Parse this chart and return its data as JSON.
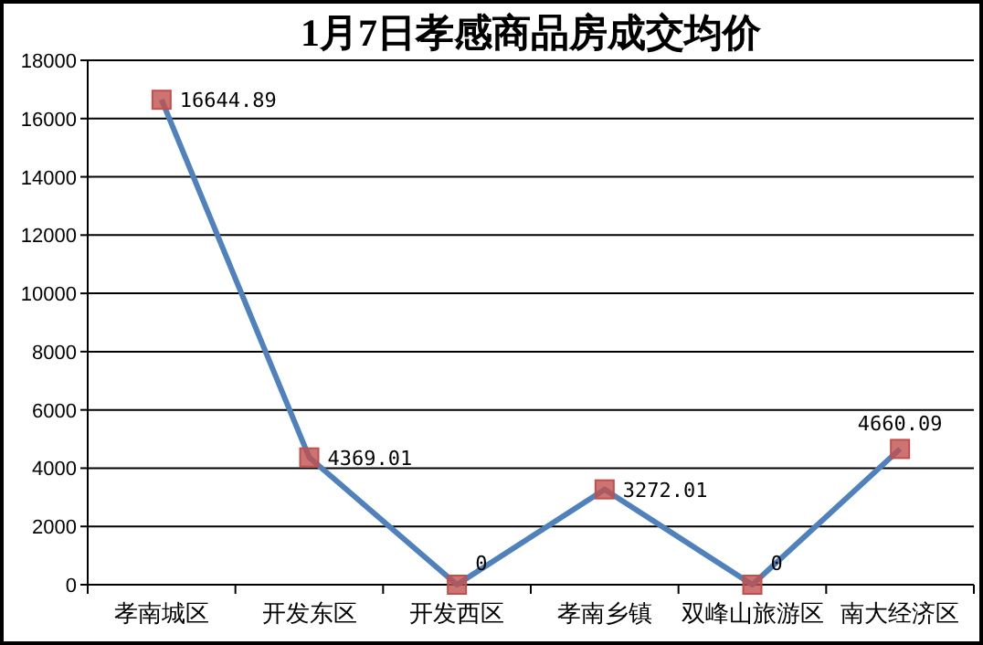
{
  "chart_data": {
    "type": "line",
    "title": "1月7日孝感商品房成交均价",
    "categories": [
      "孝南城区",
      "开发东区",
      "开发西区",
      "孝南乡镇",
      "双峰山旅游区",
      "南大经济区"
    ],
    "series": [
      {
        "color": "#4f81bd",
        "colors": [
          "#c0504d",
          "#c0504d",
          "#c0504d",
          "#c0504d",
          "#c0504d",
          "#c0504d"
        ],
        "values": [
          16644.89,
          4369.01,
          0,
          3272.01,
          0,
          4660.09
        ],
        "value_labels": [
          "16644.89",
          "4369.01",
          "0",
          "3272.01",
          "0",
          "4660.09"
        ]
      }
    ],
    "ylim": [
      0,
      18000
    ],
    "yticks": [
      0,
      2000,
      4000,
      6000,
      8000,
      10000,
      12000,
      14000,
      16000,
      18000
    ],
    "grid": "y",
    "marker": "square",
    "line_style": "solid"
  }
}
